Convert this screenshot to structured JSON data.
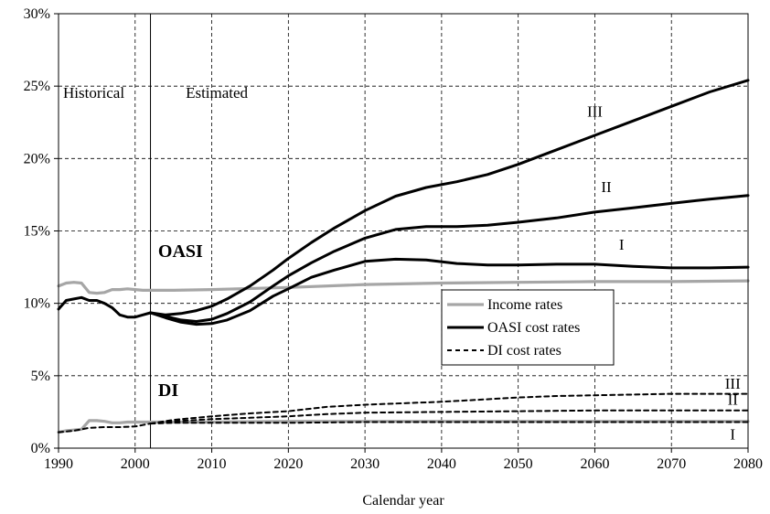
{
  "chart_data": {
    "type": "line",
    "xlabel": "Calendar year",
    "ylabel": "",
    "xlim": [
      1990,
      2080
    ],
    "ylim": [
      0,
      30
    ],
    "x_ticks": [
      "1990",
      "2000",
      "2010",
      "2020",
      "2030",
      "2040",
      "2050",
      "2060",
      "2070",
      "2080"
    ],
    "y_ticks": [
      "0%",
      "5%",
      "10%",
      "15%",
      "20%",
      "25%",
      "30%"
    ],
    "grid": "dashed vertical and horizontal",
    "divider_year": 2002,
    "region_labels": [
      "Historical",
      "Estimated"
    ],
    "group_labels": [
      "OASI",
      "DI"
    ],
    "legend": {
      "position": "center-right",
      "entries": [
        {
          "label": "Income rates",
          "style": "gray-solid"
        },
        {
          "label": "OASI cost rates",
          "style": "black-solid"
        },
        {
          "label": "DI cost rates",
          "style": "black-dashed"
        }
      ]
    },
    "colors": {
      "income": "#a6a6a6",
      "cost": "#000000"
    },
    "series": [
      {
        "group": "oasi_income",
        "points": [
          [
            1990,
            11.2
          ],
          [
            1991,
            11.4
          ],
          [
            1992,
            11.45
          ],
          [
            1993,
            11.4
          ],
          [
            1994,
            10.75
          ],
          [
            1995,
            10.7
          ],
          [
            1996,
            10.75
          ],
          [
            1997,
            10.95
          ],
          [
            1998,
            10.95
          ],
          [
            1999,
            11.0
          ],
          [
            2000,
            10.95
          ],
          [
            2001,
            10.9
          ],
          [
            2002,
            10.9
          ],
          [
            2005,
            10.9
          ],
          [
            2010,
            10.95
          ],
          [
            2020,
            11.1
          ],
          [
            2030,
            11.3
          ],
          [
            2040,
            11.4
          ],
          [
            2050,
            11.45
          ],
          [
            2060,
            11.5
          ],
          [
            2070,
            11.5
          ],
          [
            2080,
            11.55
          ]
        ]
      },
      {
        "group": "oasi_cost_hist",
        "points": [
          [
            1990,
            9.6
          ],
          [
            1991,
            10.2
          ],
          [
            1992,
            10.3
          ],
          [
            1993,
            10.4
          ],
          [
            1994,
            10.2
          ],
          [
            1995,
            10.2
          ],
          [
            1996,
            10.0
          ],
          [
            1997,
            9.7
          ],
          [
            1998,
            9.2
          ],
          [
            1999,
            9.05
          ],
          [
            2000,
            9.05
          ],
          [
            2001,
            9.2
          ],
          [
            2002,
            9.35
          ]
        ]
      },
      {
        "name": "I",
        "group": "oasi_cost",
        "points": [
          [
            2002,
            9.35
          ],
          [
            2004,
            9.0
          ],
          [
            2006,
            8.7
          ],
          [
            2008,
            8.55
          ],
          [
            2010,
            8.6
          ],
          [
            2012,
            8.85
          ],
          [
            2015,
            9.5
          ],
          [
            2018,
            10.5
          ],
          [
            2020,
            11.0
          ],
          [
            2023,
            11.8
          ],
          [
            2026,
            12.3
          ],
          [
            2030,
            12.9
          ],
          [
            2034,
            13.05
          ],
          [
            2038,
            13.0
          ],
          [
            2042,
            12.75
          ],
          [
            2046,
            12.65
          ],
          [
            2050,
            12.65
          ],
          [
            2055,
            12.7
          ],
          [
            2060,
            12.7
          ],
          [
            2065,
            12.55
          ],
          [
            2070,
            12.45
          ],
          [
            2075,
            12.45
          ],
          [
            2080,
            12.5
          ]
        ]
      },
      {
        "name": "II",
        "group": "oasi_cost",
        "points": [
          [
            2002,
            9.35
          ],
          [
            2004,
            9.1
          ],
          [
            2006,
            8.85
          ],
          [
            2008,
            8.75
          ],
          [
            2010,
            8.9
          ],
          [
            2012,
            9.3
          ],
          [
            2015,
            10.1
          ],
          [
            2018,
            11.2
          ],
          [
            2020,
            11.9
          ],
          [
            2023,
            12.8
          ],
          [
            2026,
            13.6
          ],
          [
            2030,
            14.5
          ],
          [
            2034,
            15.1
          ],
          [
            2038,
            15.3
          ],
          [
            2042,
            15.3
          ],
          [
            2046,
            15.4
          ],
          [
            2050,
            15.6
          ],
          [
            2055,
            15.9
          ],
          [
            2060,
            16.3
          ],
          [
            2065,
            16.6
          ],
          [
            2070,
            16.9
          ],
          [
            2075,
            17.2
          ],
          [
            2080,
            17.45
          ]
        ]
      },
      {
        "name": "III",
        "group": "oasi_cost",
        "points": [
          [
            2002,
            9.35
          ],
          [
            2004,
            9.2
          ],
          [
            2006,
            9.3
          ],
          [
            2008,
            9.5
          ],
          [
            2010,
            9.8
          ],
          [
            2012,
            10.3
          ],
          [
            2015,
            11.2
          ],
          [
            2018,
            12.3
          ],
          [
            2020,
            13.1
          ],
          [
            2023,
            14.2
          ],
          [
            2026,
            15.2
          ],
          [
            2030,
            16.4
          ],
          [
            2034,
            17.4
          ],
          [
            2038,
            18.0
          ],
          [
            2042,
            18.4
          ],
          [
            2046,
            18.9
          ],
          [
            2050,
            19.6
          ],
          [
            2055,
            20.6
          ],
          [
            2060,
            21.6
          ],
          [
            2065,
            22.6
          ],
          [
            2070,
            23.6
          ],
          [
            2075,
            24.6
          ],
          [
            2080,
            25.4
          ]
        ]
      },
      {
        "group": "di_income",
        "points": [
          [
            1990,
            1.1
          ],
          [
            1991,
            1.2
          ],
          [
            1992,
            1.25
          ],
          [
            1993,
            1.3
          ],
          [
            1994,
            1.9
          ],
          [
            1995,
            1.9
          ],
          [
            1996,
            1.85
          ],
          [
            1997,
            1.75
          ],
          [
            1998,
            1.75
          ],
          [
            1999,
            1.8
          ],
          [
            2000,
            1.8
          ],
          [
            2002,
            1.8
          ],
          [
            2010,
            1.8
          ],
          [
            2020,
            1.85
          ],
          [
            2030,
            1.85
          ],
          [
            2040,
            1.85
          ],
          [
            2050,
            1.85
          ],
          [
            2060,
            1.85
          ],
          [
            2070,
            1.85
          ],
          [
            2080,
            1.85
          ]
        ]
      },
      {
        "group": "di_cost_hist",
        "points": [
          [
            1990,
            1.1
          ],
          [
            1992,
            1.2
          ],
          [
            1993,
            1.3
          ],
          [
            1994,
            1.4
          ],
          [
            1996,
            1.45
          ],
          [
            1998,
            1.45
          ],
          [
            2000,
            1.5
          ],
          [
            2001,
            1.6
          ],
          [
            2002,
            1.7
          ]
        ]
      },
      {
        "name": "I",
        "group": "di_cost",
        "points": [
          [
            2002,
            1.7
          ],
          [
            2005,
            1.75
          ],
          [
            2010,
            1.75
          ],
          [
            2020,
            1.75
          ],
          [
            2030,
            1.8
          ],
          [
            2040,
            1.8
          ],
          [
            2050,
            1.8
          ],
          [
            2060,
            1.8
          ],
          [
            2070,
            1.8
          ],
          [
            2080,
            1.8
          ]
        ]
      },
      {
        "name": "II",
        "group": "di_cost",
        "points": [
          [
            2002,
            1.7
          ],
          [
            2005,
            1.85
          ],
          [
            2010,
            2.0
          ],
          [
            2015,
            2.1
          ],
          [
            2020,
            2.2
          ],
          [
            2025,
            2.35
          ],
          [
            2030,
            2.45
          ],
          [
            2040,
            2.5
          ],
          [
            2050,
            2.55
          ],
          [
            2060,
            2.6
          ],
          [
            2070,
            2.6
          ],
          [
            2080,
            2.6
          ]
        ]
      },
      {
        "name": "III",
        "group": "di_cost",
        "points": [
          [
            2002,
            1.7
          ],
          [
            2005,
            1.95
          ],
          [
            2010,
            2.2
          ],
          [
            2015,
            2.4
          ],
          [
            2020,
            2.55
          ],
          [
            2025,
            2.85
          ],
          [
            2030,
            3.0
          ],
          [
            2035,
            3.1
          ],
          [
            2040,
            3.2
          ],
          [
            2045,
            3.35
          ],
          [
            2050,
            3.5
          ],
          [
            2055,
            3.6
          ],
          [
            2060,
            3.65
          ],
          [
            2065,
            3.7
          ],
          [
            2070,
            3.75
          ],
          [
            2075,
            3.75
          ],
          [
            2080,
            3.75
          ]
        ]
      }
    ],
    "series_labels": [
      {
        "text": "III",
        "x": 2060,
        "y": 22.9
      },
      {
        "text": "II",
        "x": 2061.5,
        "y": 17.7
      },
      {
        "text": "I",
        "x": 2063.5,
        "y": 13.7
      },
      {
        "text": "III",
        "x": 2078,
        "y": 4.1
      },
      {
        "text": "II",
        "x": 2078,
        "y": 3.0
      },
      {
        "text": "I",
        "x": 2078,
        "y": 0.6
      }
    ],
    "annotations": [
      {
        "text": "OASI",
        "x": 2003,
        "y": 13.2
      },
      {
        "text": "DI",
        "x": 2003,
        "y": 3.6
      }
    ]
  }
}
